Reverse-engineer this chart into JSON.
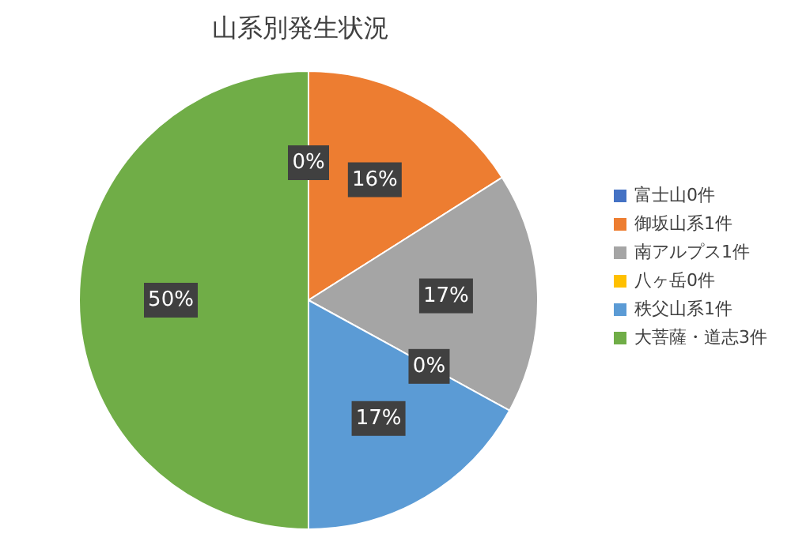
{
  "chart_data": {
    "type": "pie",
    "title": "山系別発生状況",
    "categories": [
      "富士山0件",
      "御坂山系1件",
      "南アルプス1件",
      "八ヶ岳0件",
      "秩父山系1件",
      "大菩薩・道志3件"
    ],
    "values": [
      0,
      16,
      17,
      0,
      17,
      50
    ],
    "colors": [
      "#4472c4",
      "#ed7d31",
      "#a5a5a5",
      "#ffc000",
      "#5b9bd5",
      "#70ad47"
    ],
    "value_labels": [
      "0%",
      "16%",
      "17%",
      "0%",
      "17%",
      "50%"
    ],
    "legend": "right"
  }
}
